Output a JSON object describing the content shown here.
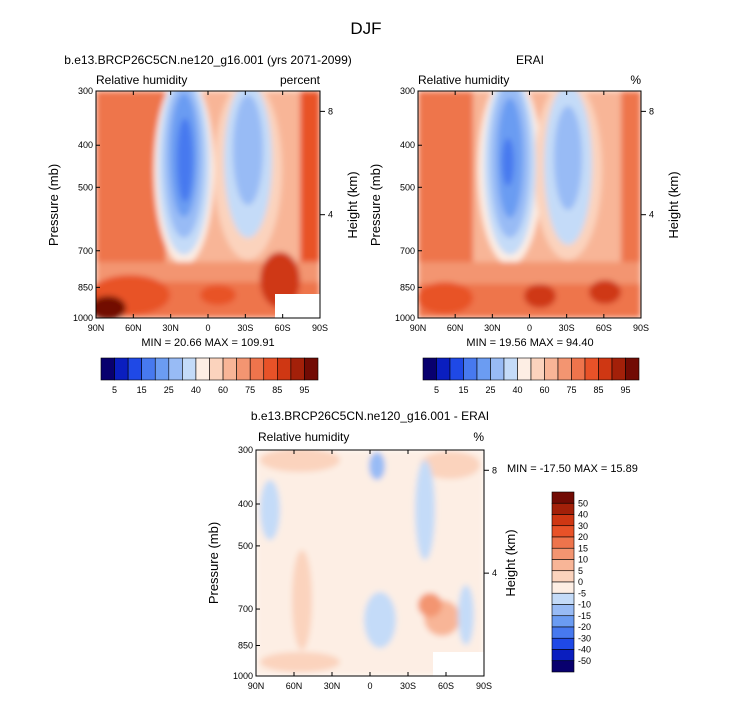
{
  "figure": {
    "title": "DJF"
  },
  "colors": {
    "rh_levels": [
      "#08006e",
      "#0a1ebf",
      "#1f49e6",
      "#4779ef",
      "#6b9cf2",
      "#98bbf5",
      "#c4dbf8",
      "#fdeee4",
      "#fbd3bd",
      "#f8b597",
      "#f39571",
      "#ee744c",
      "#e85228",
      "#cf3713",
      "#a32009",
      "#720b04"
    ],
    "diff_levels": [
      "#08006e",
      "#0a1ebf",
      "#1f49e6",
      "#4779ef",
      "#6b9cf2",
      "#98bbf5",
      "#c4dbf8",
      "#fdeee4",
      "#fbd3bd",
      "#f8b597",
      "#f39571",
      "#ee744c",
      "#e85228",
      "#cf3713",
      "#a32009",
      "#720b04"
    ],
    "missing": "#ffffff"
  },
  "chart_data": [
    {
      "type": "contour",
      "title": "b.e13.BRCP26C5CN.ne120_g16.001 (yrs 2071-2099)",
      "left_title": "Relative humidity",
      "right_title": "percent",
      "ylabel": "Pressure (mb)",
      "right_ylabel": "Height (km)",
      "xticks": [
        "90N",
        "60N",
        "30N",
        "0",
        "30S",
        "60S",
        "90S"
      ],
      "yticks": [
        "300",
        "400",
        "500",
        "700",
        "850",
        "1000"
      ],
      "right_yticks": [
        "8",
        "4"
      ],
      "min": 20.66,
      "max": 109.91,
      "stats_text": "MIN =  20.66   MAX = 109.91",
      "colorbar_labels": [
        "5",
        "15",
        "25",
        "40",
        "60",
        "75",
        "85",
        "95"
      ]
    },
    {
      "type": "contour",
      "title": "ERAI",
      "left_title": "Relative humidity",
      "right_title": "%",
      "ylabel": "Pressure (mb)",
      "right_ylabel": "Height (km)",
      "xticks": [
        "90N",
        "60N",
        "30N",
        "0",
        "30S",
        "60S",
        "90S"
      ],
      "yticks": [
        "300",
        "400",
        "500",
        "700",
        "850",
        "1000"
      ],
      "right_yticks": [
        "8",
        "4"
      ],
      "min": 19.56,
      "max": 94.4,
      "stats_text": "MIN =  19.56   MAX =  94.40",
      "colorbar_labels": [
        "5",
        "15",
        "25",
        "40",
        "60",
        "75",
        "85",
        "95"
      ]
    },
    {
      "type": "contour",
      "title": "b.e13.BRCP26C5CN.ne120_g16.001 - ERAI",
      "left_title": "Relative humidity",
      "right_title": "%",
      "ylabel": "Pressure (mb)",
      "right_ylabel": "Height (km)",
      "xticks": [
        "90N",
        "60N",
        "30N",
        "0",
        "30S",
        "60S",
        "90S"
      ],
      "yticks": [
        "300",
        "400",
        "500",
        "700",
        "850",
        "1000"
      ],
      "right_yticks": [
        "8",
        "4"
      ],
      "min": -17.5,
      "max": 15.89,
      "stats_text": "MIN = -17.50  MAX =  15.89",
      "colorbar_labels": [
        "50",
        "40",
        "30",
        "20",
        "15",
        "10",
        "5",
        "0",
        "-5",
        "-10",
        "-15",
        "-20",
        "-30",
        "-40",
        "-50"
      ]
    }
  ]
}
